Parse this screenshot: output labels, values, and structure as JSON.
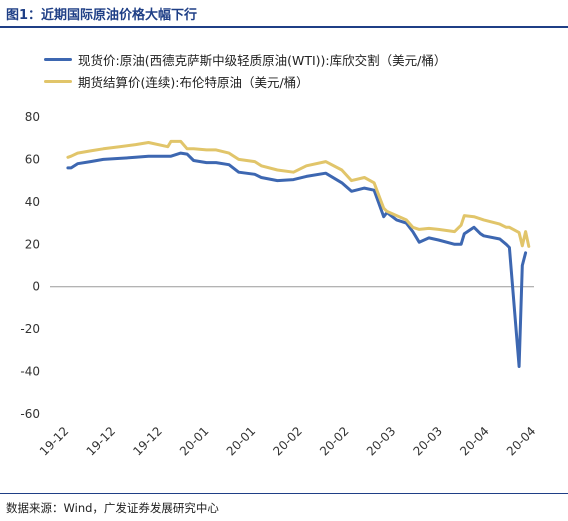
{
  "header": {
    "title": "图1：近期国际原油价格大幅下行"
  },
  "footer": {
    "source": "数据来源：Wind，广发证券发展研究中心"
  },
  "colors": {
    "wti": "#3d67b1",
    "brent": "#e1c56a",
    "header_rule": "#1f3f86"
  },
  "chart_data": {
    "type": "line",
    "title": "",
    "xlabel": "",
    "ylabel": "",
    "ylim": [
      -60,
      80
    ],
    "yticks": [
      80,
      60,
      40,
      20,
      0,
      -20,
      -40,
      -60
    ],
    "xticks": [
      "19-12",
      "19-12",
      "19-12",
      "20-01",
      "20-01",
      "20-02",
      "20-02",
      "20-03",
      "20-03",
      "20-04",
      "20-04"
    ],
    "grid": false,
    "legend_position": "top-left",
    "series": [
      {
        "name": "现货价:原油(西德克萨斯中级轻质原油(WTI)):库欣交割（美元/桶）",
        "color": "#3d67b1",
        "x": [
          "2019-12-02",
          "2019-12-03",
          "2019-12-05",
          "2019-12-09",
          "2019-12-13",
          "2019-12-18",
          "2019-12-23",
          "2019-12-27",
          "2020-01-03",
          "2020-01-06",
          "2020-01-08",
          "2020-01-10",
          "2020-01-14",
          "2020-01-17",
          "2020-01-21",
          "2020-01-24",
          "2020-01-29",
          "2020-01-31",
          "2020-02-05",
          "2020-02-10",
          "2020-02-14",
          "2020-02-20",
          "2020-02-25",
          "2020-02-28",
          "2020-03-03",
          "2020-03-06",
          "2020-03-09",
          "2020-03-10",
          "2020-03-13",
          "2020-03-16",
          "2020-03-18",
          "2020-03-20",
          "2020-03-23",
          "2020-03-26",
          "2020-03-31",
          "2020-04-02",
          "2020-04-03",
          "2020-04-06",
          "2020-04-08",
          "2020-04-09",
          "2020-04-14",
          "2020-04-16",
          "2020-04-17",
          "2020-04-20",
          "2020-04-21",
          "2020-04-22"
        ],
        "y": [
          56,
          56,
          58,
          59,
          60,
          60.5,
          61,
          61.5,
          61.5,
          63,
          62.5,
          59.5,
          58.5,
          58.5,
          57.5,
          54,
          53,
          51.5,
          50,
          50.5,
          52,
          53.5,
          49,
          45,
          46.5,
          45.5,
          33,
          35,
          31.5,
          30,
          26,
          21,
          23,
          22,
          20,
          20,
          25,
          28,
          25,
          24,
          22.5,
          20,
          18.5,
          -37.6,
          10,
          16
        ]
      },
      {
        "name": "期货结算价(连续):布伦特原油（美元/桶）",
        "color": "#e1c56a",
        "x": [
          "2019-12-02",
          "2019-12-03",
          "2019-12-05",
          "2019-12-09",
          "2019-12-13",
          "2019-12-18",
          "2019-12-23",
          "2019-12-27",
          "2020-01-02",
          "2020-01-03",
          "2020-01-06",
          "2020-01-08",
          "2020-01-10",
          "2020-01-14",
          "2020-01-17",
          "2020-01-21",
          "2020-01-24",
          "2020-01-29",
          "2020-01-31",
          "2020-02-05",
          "2020-02-10",
          "2020-02-14",
          "2020-02-20",
          "2020-02-25",
          "2020-02-28",
          "2020-03-03",
          "2020-03-06",
          "2020-03-09",
          "2020-03-10",
          "2020-03-13",
          "2020-03-16",
          "2020-03-18",
          "2020-03-20",
          "2020-03-23",
          "2020-03-26",
          "2020-03-31",
          "2020-04-02",
          "2020-04-03",
          "2020-04-06",
          "2020-04-08",
          "2020-04-09",
          "2020-04-14",
          "2020-04-16",
          "2020-04-17",
          "2020-04-20",
          "2020-04-21",
          "2020-04-22",
          "2020-04-23"
        ],
        "y": [
          61,
          61.5,
          63,
          64,
          65,
          66,
          67,
          68,
          66,
          68.5,
          68.5,
          65,
          65,
          64.5,
          64.5,
          63,
          60,
          59,
          57,
          55,
          54,
          57,
          59,
          55,
          50,
          51.5,
          49,
          37,
          35.5,
          33.5,
          31.5,
          28,
          27,
          27.5,
          27,
          26,
          29,
          33.5,
          33,
          32,
          31.5,
          29.5,
          28,
          28,
          25.5,
          19.3,
          26,
          19
        ]
      }
    ]
  }
}
